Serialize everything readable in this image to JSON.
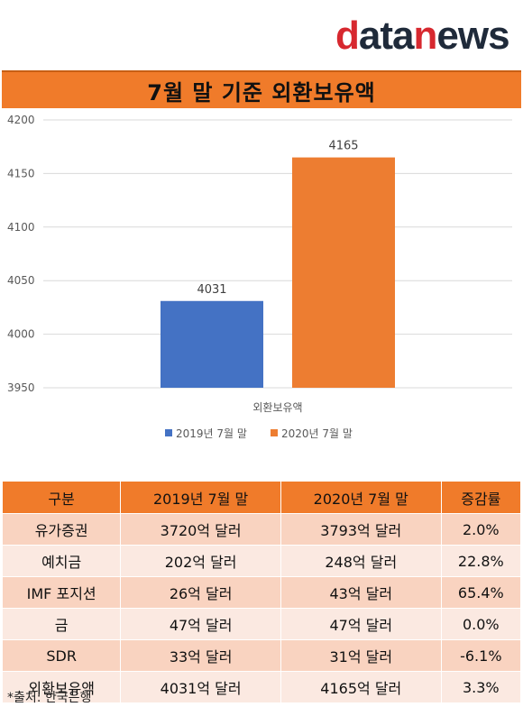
{
  "logo": {
    "d": "d",
    "ata": "ata",
    "n": "n",
    "ews": "ews"
  },
  "title": "7월 말 기준 외환보유액",
  "chart_data": {
    "type": "bar",
    "categories": [
      "외환보유액"
    ],
    "series": [
      {
        "name": "2019년 7월 말",
        "values": [
          4031
        ],
        "color": "#4472c4"
      },
      {
        "name": "2020년 7월 말",
        "values": [
          4165
        ],
        "color": "#ed7d31"
      }
    ],
    "ylim": [
      3950,
      4200
    ],
    "yticks": [
      "4200",
      "4150",
      "4100",
      "4050",
      "4000",
      "3950"
    ],
    "grid": true,
    "legend": "bottom"
  },
  "table": {
    "headers": [
      "구분",
      "2019년 7월 말",
      "2020년 7월 말",
      "증감률"
    ],
    "rows": [
      [
        "유가증권",
        "3720억 달러",
        "3793억 달러",
        "2.0%"
      ],
      [
        "예치금",
        "202억 달러",
        "248억 달러",
        "22.8%"
      ],
      [
        "IMF 포지션",
        "26억 달러",
        "43억 달러",
        "65.4%"
      ],
      [
        "금",
        "47억 달러",
        "47억 달러",
        "0.0%"
      ],
      [
        "SDR",
        "33억 달러",
        "31억 달러",
        "-6.1%"
      ],
      [
        "외환보유액",
        "4031억 달러",
        "4165억 달러",
        "3.3%"
      ]
    ]
  },
  "source": "*출처: 한국은행"
}
